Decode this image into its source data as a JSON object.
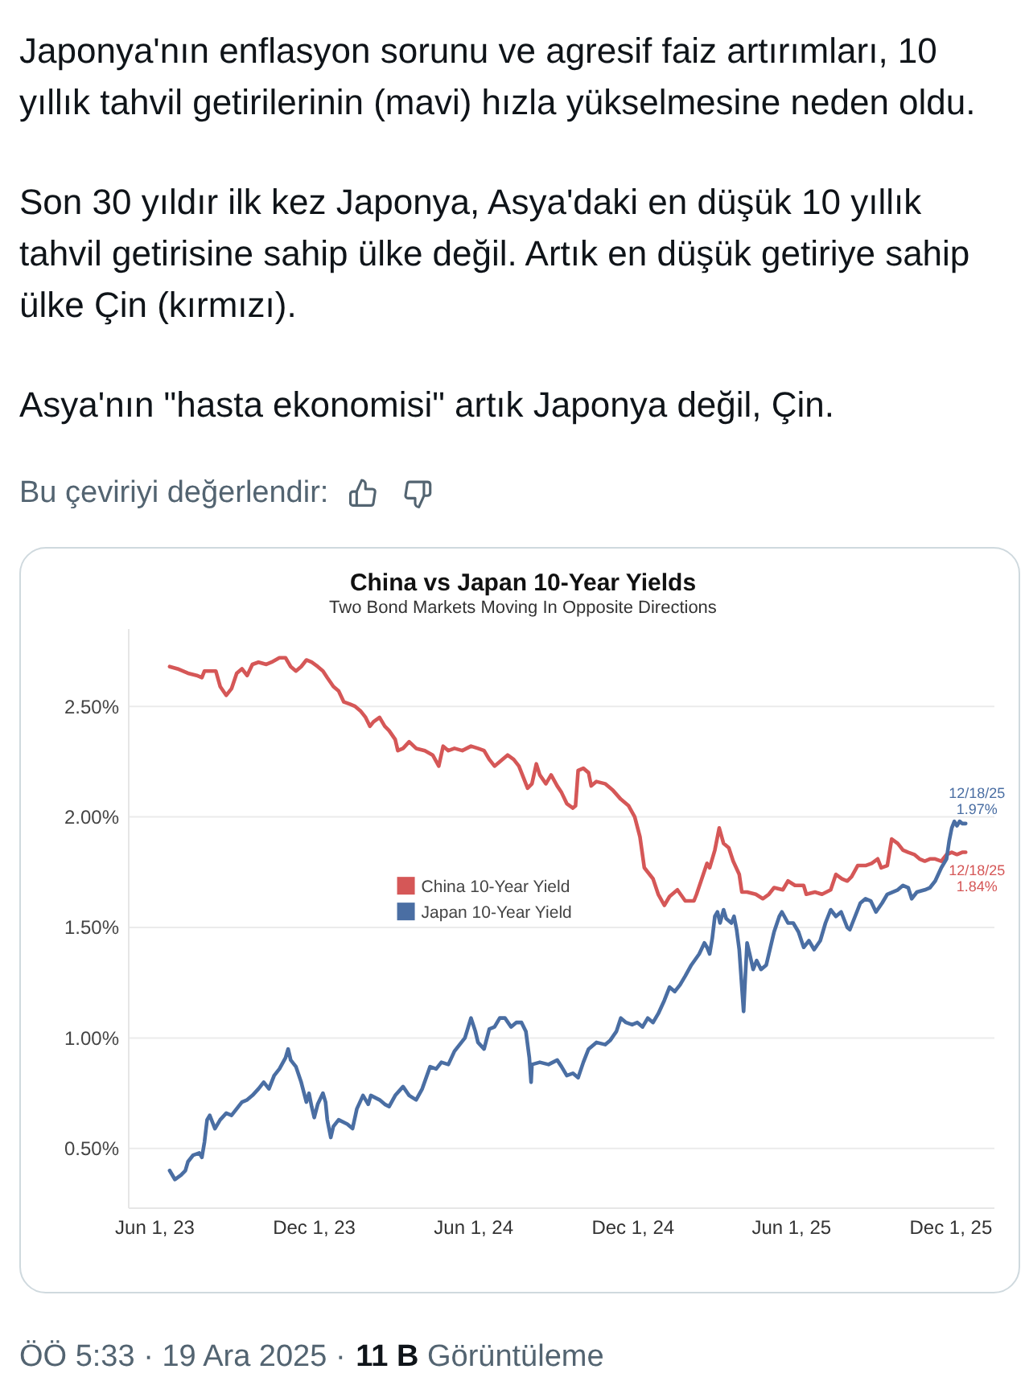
{
  "chart_data": {
    "type": "line",
    "title": "China vs Japan 10-Year Yields",
    "subtitle": "Two Bond Markets Moving In Opposite Directions",
    "series": [
      {
        "name": "China 10-Year Yield",
        "color": "#d55757",
        "x": [
          "2023-06-18",
          "2023-06-27",
          "2023-07-09",
          "2023-07-19",
          "2023-07-25",
          "2023-07-28",
          "2023-08-03",
          "2023-08-10",
          "2023-08-15",
          "2023-08-22",
          "2023-08-28",
          "2023-09-03",
          "2023-09-09",
          "2023-09-15",
          "2023-09-21",
          "2023-09-28",
          "2023-10-07",
          "2023-10-13",
          "2023-10-22",
          "2023-10-29",
          "2023-11-04",
          "2023-11-10",
          "2023-11-16",
          "2023-11-22",
          "2023-11-28",
          "2023-12-05",
          "2023-12-11",
          "2023-12-16",
          "2023-12-23",
          "2023-12-29",
          "2024-01-04",
          "2024-01-11",
          "2024-01-17",
          "2024-01-23",
          "2024-01-29",
          "2024-02-03",
          "2024-02-07",
          "2024-02-14",
          "2024-02-20",
          "2024-02-25",
          "2024-03-03",
          "2024-03-06",
          "2024-03-12",
          "2024-03-19",
          "2024-03-27",
          "2024-04-06",
          "2024-04-15",
          "2024-04-22",
          "2024-04-27",
          "2024-05-03",
          "2024-05-10",
          "2024-05-19",
          "2024-05-29",
          "2024-06-06",
          "2024-06-13",
          "2024-06-19",
          "2024-06-25",
          "2024-07-01",
          "2024-07-10",
          "2024-07-17",
          "2024-07-23",
          "2024-08-02",
          "2024-08-07",
          "2024-08-12",
          "2024-08-16",
          "2024-08-23",
          "2024-08-29",
          "2024-09-05",
          "2024-09-10",
          "2024-09-16",
          "2024-09-23",
          "2024-09-26",
          "2024-09-29",
          "2024-10-05",
          "2024-10-11",
          "2024-10-14",
          "2024-10-20",
          "2024-10-30",
          "2024-11-08",
          "2024-11-17",
          "2024-11-26",
          "2024-12-03",
          "2024-12-09",
          "2024-12-14",
          "2024-12-18",
          "2024-12-24",
          "2024-12-30",
          "2025-01-06",
          "2025-01-12",
          "2025-01-21",
          "2025-01-30",
          "2025-02-09",
          "2025-02-12",
          "2025-02-18",
          "2025-02-24",
          "2025-02-27",
          "2025-03-05",
          "2025-03-10",
          "2025-03-15",
          "2025-03-21",
          "2025-03-26",
          "2025-04-02",
          "2025-04-05",
          "2025-04-11",
          "2025-04-21",
          "2025-04-29",
          "2025-05-06",
          "2025-05-12",
          "2025-05-22",
          "2025-05-28",
          "2025-06-05",
          "2025-06-15",
          "2025-06-18",
          "2025-06-28",
          "2025-07-06",
          "2025-07-16",
          "2025-07-22",
          "2025-07-29",
          "2025-08-04",
          "2025-08-09",
          "2025-08-16",
          "2025-08-25",
          "2025-09-01",
          "2025-09-08",
          "2025-09-12",
          "2025-09-19",
          "2025-09-24",
          "2025-10-01",
          "2025-10-07",
          "2025-10-13",
          "2025-10-20",
          "2025-10-26",
          "2025-11-01",
          "2025-11-07",
          "2025-11-13",
          "2025-11-20",
          "2025-11-26",
          "2025-12-02",
          "2025-12-08",
          "2025-12-14",
          "2025-12-18"
        ],
        "values": [
          2.68,
          2.67,
          2.65,
          2.64,
          2.63,
          2.66,
          2.66,
          2.66,
          2.59,
          2.55,
          2.58,
          2.65,
          2.67,
          2.64,
          2.69,
          2.7,
          2.69,
          2.7,
          2.72,
          2.72,
          2.68,
          2.66,
          2.68,
          2.71,
          2.7,
          2.68,
          2.66,
          2.63,
          2.59,
          2.57,
          2.52,
          2.51,
          2.5,
          2.48,
          2.45,
          2.41,
          2.43,
          2.45,
          2.41,
          2.39,
          2.35,
          2.3,
          2.31,
          2.34,
          2.31,
          2.3,
          2.28,
          2.23,
          2.32,
          2.3,
          2.31,
          2.3,
          2.32,
          2.31,
          2.3,
          2.26,
          2.23,
          2.25,
          2.28,
          2.26,
          2.23,
          2.13,
          2.15,
          2.24,
          2.19,
          2.15,
          2.19,
          2.14,
          2.11,
          2.06,
          2.04,
          2.05,
          2.21,
          2.22,
          2.2,
          2.14,
          2.16,
          2.15,
          2.12,
          2.08,
          2.05,
          2.0,
          1.91,
          1.77,
          1.75,
          1.72,
          1.65,
          1.6,
          1.64,
          1.67,
          1.62,
          1.62,
          1.65,
          1.72,
          1.79,
          1.77,
          1.85,
          1.95,
          1.88,
          1.86,
          1.8,
          1.74,
          1.66,
          1.66,
          1.65,
          1.63,
          1.65,
          1.68,
          1.67,
          1.71,
          1.69,
          1.69,
          1.65,
          1.66,
          1.65,
          1.67,
          1.74,
          1.72,
          1.71,
          1.73,
          1.78,
          1.78,
          1.79,
          1.81,
          1.77,
          1.78,
          1.9,
          1.88,
          1.85,
          1.84,
          1.83,
          1.81,
          1.8,
          1.81,
          1.81,
          1.8,
          1.83,
          1.84,
          1.83,
          1.84,
          1.84
        ]
      },
      {
        "name": "Japan 10-Year Yield",
        "color": "#4a6ea3",
        "x": [
          "2023-06-18",
          "2023-06-24",
          "2023-07-01",
          "2023-07-06",
          "2023-07-09",
          "2023-07-15",
          "2023-07-22",
          "2023-07-25",
          "2023-07-28",
          "2023-07-31",
          "2023-08-03",
          "2023-08-09",
          "2023-08-15",
          "2023-08-22",
          "2023-08-28",
          "2023-09-03",
          "2023-09-09",
          "2023-09-15",
          "2023-09-21",
          "2023-09-28",
          "2023-10-04",
          "2023-10-10",
          "2023-10-16",
          "2023-10-22",
          "2023-10-29",
          "2023-11-01",
          "2023-11-04",
          "2023-11-10",
          "2023-11-16",
          "2023-11-22",
          "2023-11-25",
          "2023-11-28",
          "2023-12-01",
          "2023-12-05",
          "2023-12-11",
          "2023-12-14",
          "2023-12-16",
          "2023-12-20",
          "2023-12-23",
          "2023-12-29",
          "2024-01-08",
          "2024-01-14",
          "2024-01-19",
          "2024-01-26",
          "2024-02-01",
          "2024-02-04",
          "2024-02-14",
          "2024-02-20",
          "2024-02-25",
          "2024-03-03",
          "2024-03-12",
          "2024-03-19",
          "2024-03-27",
          "2024-04-03",
          "2024-04-12",
          "2024-04-19",
          "2024-04-25",
          "2024-05-03",
          "2024-05-10",
          "2024-05-16",
          "2024-05-22",
          "2024-05-29",
          "2024-06-03",
          "2024-06-06",
          "2024-06-13",
          "2024-06-19",
          "2024-06-25",
          "2024-07-01",
          "2024-07-07",
          "2024-07-14",
          "2024-07-20",
          "2024-07-26",
          "2024-07-31",
          "2024-08-04",
          "2024-08-06",
          "2024-08-07",
          "2024-08-16",
          "2024-08-26",
          "2024-09-05",
          "2024-09-10",
          "2024-09-16",
          "2024-09-23",
          "2024-09-29",
          "2024-10-05",
          "2024-10-11",
          "2024-10-20",
          "2024-10-30",
          "2024-11-05",
          "2024-11-12",
          "2024-11-17",
          "2024-11-23",
          "2024-11-30",
          "2024-12-06",
          "2024-12-12",
          "2024-12-18",
          "2024-12-24",
          "2024-12-30",
          "2025-01-06",
          "2025-01-12",
          "2025-01-18",
          "2025-01-24",
          "2025-01-30",
          "2025-02-06",
          "2025-02-15",
          "2025-02-21",
          "2025-02-24",
          "2025-02-27",
          "2025-03-02",
          "2025-03-05",
          "2025-03-08",
          "2025-03-11",
          "2025-03-15",
          "2025-03-18",
          "2025-03-24",
          "2025-03-27",
          "2025-03-30",
          "2025-04-02",
          "2025-04-05",
          "2025-04-07",
          "2025-04-09",
          "2025-04-11",
          "2025-04-14",
          "2025-04-18",
          "2025-04-22",
          "2025-04-27",
          "2025-05-03",
          "2025-05-06",
          "2025-05-12",
          "2025-05-18",
          "2025-05-21",
          "2025-05-28",
          "2025-06-03",
          "2025-06-09",
          "2025-06-15",
          "2025-06-21",
          "2025-06-27",
          "2025-07-04",
          "2025-07-10",
          "2025-07-16",
          "2025-07-22",
          "2025-07-28",
          "2025-08-04",
          "2025-08-07",
          "2025-08-13",
          "2025-08-19",
          "2025-08-25",
          "2025-08-31",
          "2025-09-06",
          "2025-09-13",
          "2025-09-19",
          "2025-09-25",
          "2025-10-01",
          "2025-10-07",
          "2025-10-13",
          "2025-10-17",
          "2025-10-23",
          "2025-11-01",
          "2025-11-07",
          "2025-11-13",
          "2025-11-20",
          "2025-11-26",
          "2025-11-29",
          "2025-12-02",
          "2025-12-05",
          "2025-12-08",
          "2025-12-11",
          "2025-12-14",
          "2025-12-18"
        ],
        "values": [
          0.4,
          0.36,
          0.38,
          0.4,
          0.44,
          0.47,
          0.48,
          0.46,
          0.53,
          0.63,
          0.65,
          0.59,
          0.63,
          0.66,
          0.65,
          0.68,
          0.71,
          0.72,
          0.74,
          0.77,
          0.8,
          0.77,
          0.83,
          0.86,
          0.91,
          0.95,
          0.9,
          0.87,
          0.8,
          0.71,
          0.75,
          0.69,
          0.64,
          0.7,
          0.75,
          0.71,
          0.63,
          0.55,
          0.6,
          0.63,
          0.61,
          0.59,
          0.68,
          0.74,
          0.7,
          0.74,
          0.72,
          0.7,
          0.69,
          0.74,
          0.78,
          0.74,
          0.72,
          0.77,
          0.87,
          0.86,
          0.89,
          0.88,
          0.94,
          0.97,
          1.0,
          1.09,
          1.03,
          0.98,
          0.95,
          1.04,
          1.05,
          1.09,
          1.09,
          1.05,
          1.07,
          1.07,
          1.03,
          0.91,
          0.8,
          0.88,
          0.89,
          0.88,
          0.9,
          0.87,
          0.83,
          0.84,
          0.82,
          0.89,
          0.95,
          0.98,
          0.97,
          0.99,
          1.03,
          1.09,
          1.07,
          1.06,
          1.07,
          1.05,
          1.09,
          1.07,
          1.11,
          1.17,
          1.23,
          1.21,
          1.24,
          1.28,
          1.33,
          1.38,
          1.43,
          1.41,
          1.38,
          1.45,
          1.55,
          1.57,
          1.52,
          1.58,
          1.54,
          1.52,
          1.55,
          1.49,
          1.4,
          1.23,
          1.12,
          1.28,
          1.43,
          1.38,
          1.31,
          1.35,
          1.31,
          1.33,
          1.38,
          1.48,
          1.55,
          1.57,
          1.52,
          1.52,
          1.48,
          1.41,
          1.44,
          1.4,
          1.44,
          1.52,
          1.58,
          1.55,
          1.57,
          1.5,
          1.49,
          1.55,
          1.61,
          1.63,
          1.62,
          1.57,
          1.61,
          1.65,
          1.66,
          1.67,
          1.69,
          1.68,
          1.63,
          1.66,
          1.67,
          1.68,
          1.71,
          1.77,
          1.81,
          1.89,
          1.95,
          1.98,
          1.96,
          1.98,
          1.97,
          1.97
        ]
      }
    ],
    "xlim": [
      "2023-05-02",
      "2026-01-20"
    ],
    "xticks": [
      {
        "value": "2023-06-01",
        "label": "Jun 1, 23"
      },
      {
        "value": "2023-12-01",
        "label": "Dec 1, 23"
      },
      {
        "value": "2024-06-01",
        "label": "Jun 1, 24"
      },
      {
        "value": "2024-12-01",
        "label": "Dec 1, 24"
      },
      {
        "value": "2025-06-01",
        "label": "Jun 1, 25"
      },
      {
        "value": "2025-12-01",
        "label": "Dec 1, 25"
      }
    ],
    "ylim": [
      0.23,
      2.85
    ],
    "yticks": [
      {
        "value": 0.5,
        "label": "0.50%"
      },
      {
        "value": 1,
        "label": "1.00%"
      },
      {
        "value": 1.5,
        "label": "1.50%"
      },
      {
        "value": 2,
        "label": "2.00%"
      },
      {
        "value": 2.5,
        "label": "2.50%"
      }
    ],
    "grid": "y",
    "legend": "center",
    "annotations": [
      "Japonya'nın enflasyon sorunu ve agresif faiz artırımları, 10 yıllık tahvil getirilerinin (mavi) hızla yükselmesine neden oldu.",
      "Son 30 yıldır ilk kez Japonya, Asya'daki en düşük 10 yıllık tahvil getirisine sahip ülke değil. Artık en düşük getiriye sahip ülke Çin (kırmızı).",
      "Asya'nın \"hasta ekonomisi\" artık Japonya değil, Çin.",
      "Bu çeviriyi değerlendir:",
      "ÖÖ 5:33 · 19 Ara 2025 ·",
      "11 B",
      "Görüntüleme",
      {
        "text": "12/18/25 1.97%",
        "x": "2025-12-18",
        "y": 1.97
      },
      {
        "text": "12/18/25 1.84%",
        "x": "2025-12-18",
        "y": 1.84
      }
    ]
  }
}
